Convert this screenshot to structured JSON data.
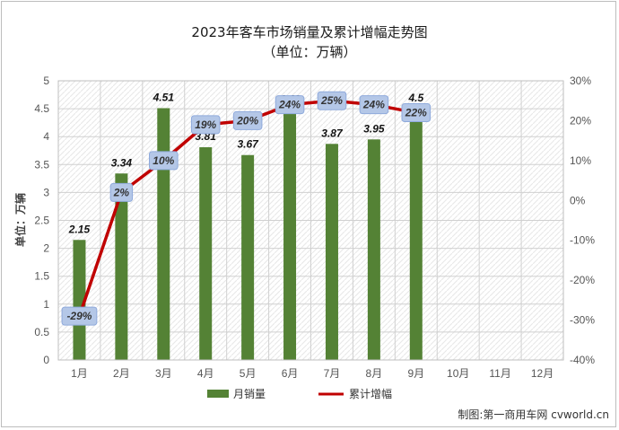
{
  "chart_data": {
    "type": "bar",
    "title": "2023年客车市场销量及累计增幅走势图",
    "subtitle": "（单位：万辆）",
    "ylabel": "单位：万辆",
    "categories": [
      "1月",
      "2月",
      "3月",
      "4月",
      "5月",
      "6月",
      "7月",
      "8月",
      "9月",
      "10月",
      "11月",
      "12月"
    ],
    "y_ticks": [
      "0",
      "0.5",
      "1",
      "1.5",
      "2",
      "2.5",
      "3",
      "3.5",
      "4",
      "4.5",
      "5"
    ],
    "y2_ticks": [
      "-40%",
      "-30%",
      "-20%",
      "-10%",
      "0%",
      "10%",
      "20%",
      "30%"
    ],
    "ylim": [
      0,
      5
    ],
    "y2lim": [
      -40,
      30
    ],
    "grid": true,
    "legend_position": "bottom",
    "series": [
      {
        "name": "月销量",
        "type": "bar",
        "axis": "left",
        "color": "#548235",
        "values": [
          2.15,
          3.34,
          4.51,
          3.81,
          3.67,
          4.48,
          3.87,
          3.95,
          4.5,
          null,
          null,
          null
        ],
        "labels": [
          "2.15",
          "3.34",
          "4.51",
          "3.81",
          "3.67",
          "4.48",
          "3.87",
          "3.95",
          "4.5",
          "",
          "",
          ""
        ]
      },
      {
        "name": "累计增幅",
        "type": "line",
        "axis": "right",
        "color": "#c00000",
        "values": [
          -29,
          2,
          10,
          19,
          20,
          24,
          25,
          24,
          22,
          null,
          null,
          null
        ],
        "labels": [
          "-29%",
          "2%",
          "10%",
          "19%",
          "20%",
          "24%",
          "25%",
          "24%",
          "22%",
          "",
          "",
          ""
        ]
      }
    ]
  },
  "credit": "制图:第一商用车网 cvworld.cn"
}
